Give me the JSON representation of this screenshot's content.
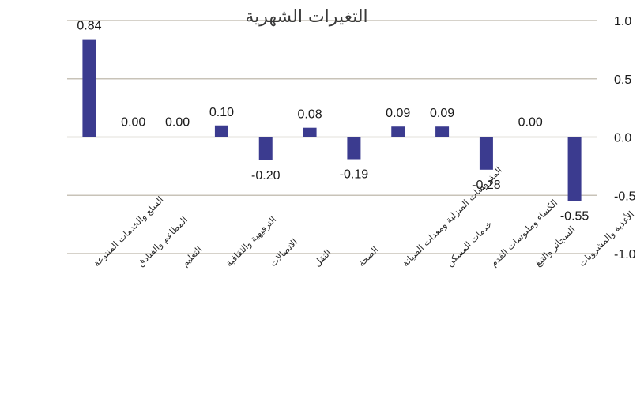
{
  "chart_data": {
    "type": "bar",
    "title": "التغيرات الشهرية",
    "categories": [
      "السلع والخدمات المتنوعة",
      "المطاعم والفنادق",
      "التعليم",
      "الترفيهية والثقافية",
      "الاتصالات",
      "النقل",
      "الصحة",
      "المفروشات المنزلية ومعدات الصيانة",
      "خدمات المسكن",
      "الكساء وملبوسات القدم",
      "السجائر والتبغ",
      "الأغذية والمشروبات"
    ],
    "values": [
      0.84,
      0.0,
      0.0,
      0.1,
      -0.2,
      0.08,
      -0.19,
      0.09,
      0.09,
      -0.28,
      0.0,
      -0.55
    ],
    "data_labels": [
      "0.84",
      "0.00",
      "0.00",
      "0.10",
      "-0.20",
      "0.08",
      "-0.19",
      "0.09",
      "0.09",
      "-0.28",
      "0.00",
      "-0.55"
    ],
    "y_ticks": [
      "1.0",
      "0.5",
      "0.0",
      "-0.5",
      "-1.0"
    ],
    "ylim": [
      -1.0,
      1.0
    ],
    "y_axis_side": "right",
    "grid": true,
    "bar_color": "#3b3b8f",
    "grid_color": "#c8c3b8"
  }
}
